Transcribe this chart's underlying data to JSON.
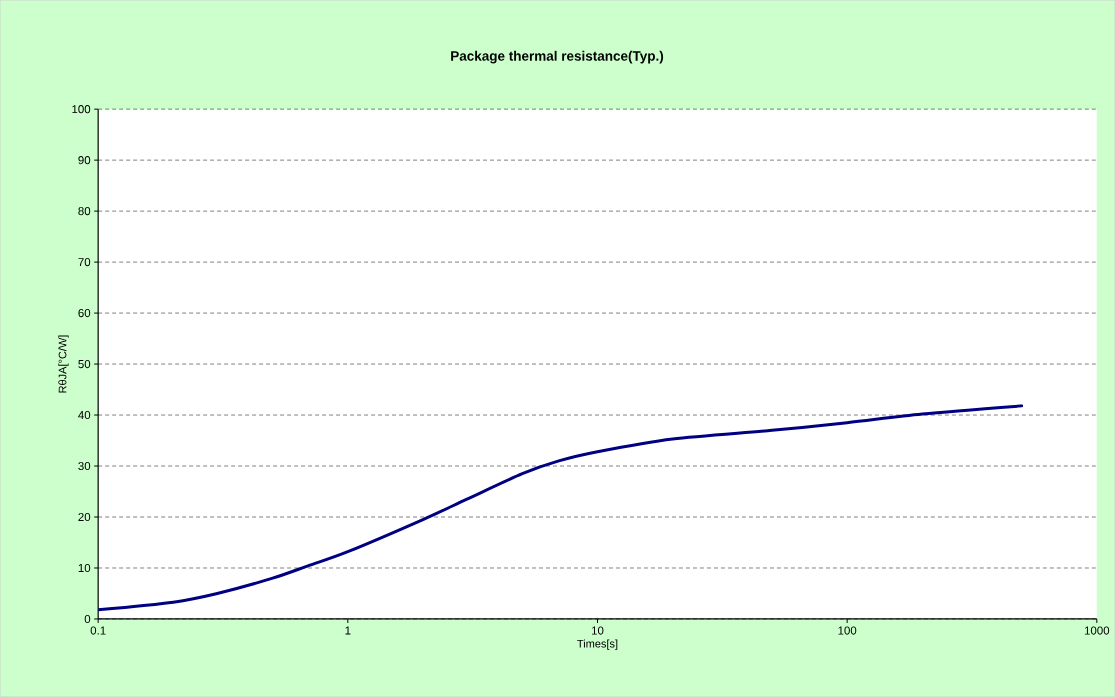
{
  "chart_data": {
    "type": "line",
    "title": "Package thermal resistance(Typ.)",
    "xlabel": "Times[s]",
    "ylabel": "RθJA[°C/W]",
    "log": "x",
    "grid": "y",
    "line_style": "solid",
    "marker": "none",
    "xlim": [
      0.1,
      1000
    ],
    "xticks": [
      0.1,
      1,
      10,
      100,
      1000
    ],
    "ylim": [
      0,
      100
    ],
    "yticks": [
      0,
      10,
      20,
      30,
      40,
      50,
      60,
      70,
      80,
      90,
      100
    ],
    "x": [
      0.1,
      0.2,
      0.3,
      0.5,
      0.7,
      1,
      2,
      3,
      5,
      7,
      10,
      20,
      50,
      100,
      200,
      500
    ],
    "series": [
      {
        "color": "#000080",
        "values": [
          1.8,
          3.3,
          5,
          8,
          10.5,
          13.2,
          19.5,
          23.5,
          28.5,
          31,
          32.8,
          35.3,
          37,
          38.5,
          40.2,
          41.8
        ]
      }
    ]
  }
}
